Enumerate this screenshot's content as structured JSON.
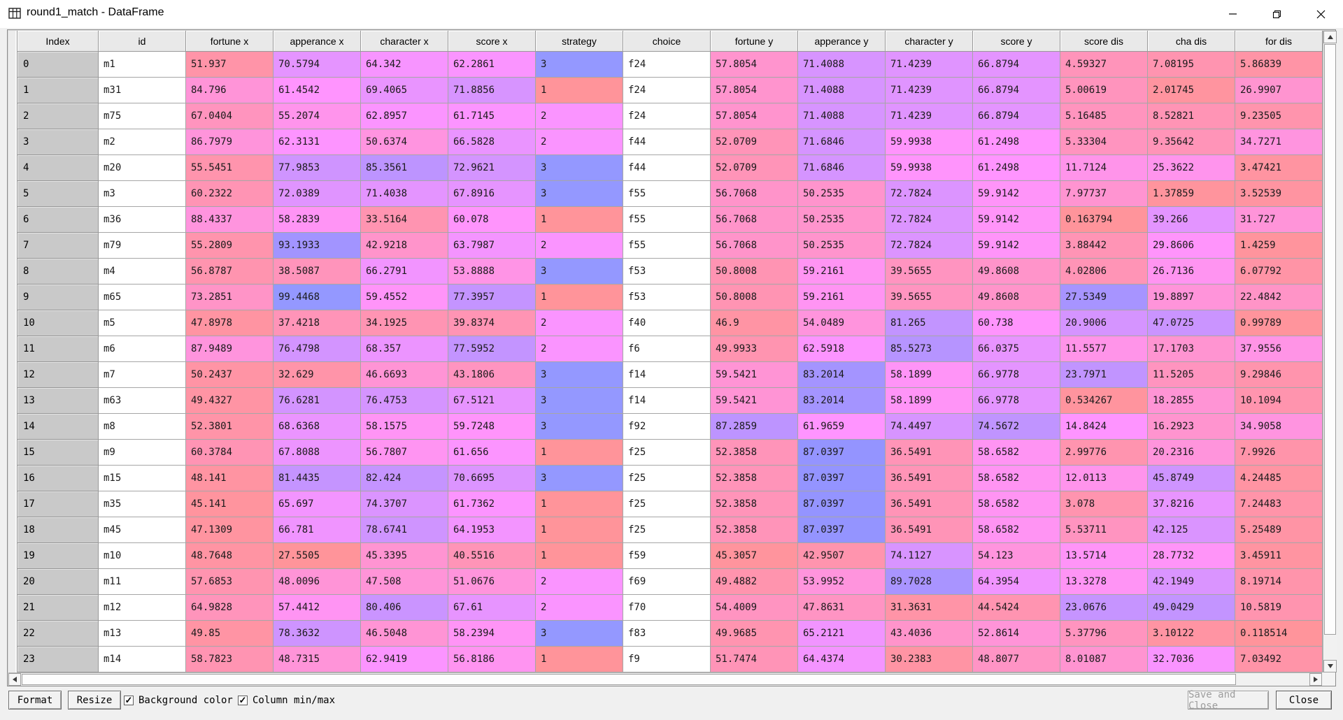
{
  "window": {
    "title": "round1_match - DataFrame"
  },
  "colormap": {
    "min_hue": 0.66,
    "hue_range": 0.33,
    "saturation": 0.7,
    "value": 1.0,
    "alpha": 0.6,
    "text_cell_bg": "#ffffff",
    "index_cell_bg": "#c9c9c9",
    "header_bg": "#e9e9e9"
  },
  "table": {
    "index_header": "Index",
    "index_values": [
      "0",
      "1",
      "2",
      "3",
      "4",
      "5",
      "6",
      "7",
      "8",
      "9",
      "10",
      "11",
      "12",
      "13",
      "14",
      "15",
      "16",
      "17",
      "18",
      "19",
      "20",
      "21",
      "22",
      "23"
    ],
    "columns": [
      {
        "label": "id",
        "type": "text"
      },
      {
        "label": "fortune x",
        "type": "number",
        "cmin": 43,
        "cmax": 186
      },
      {
        "label": "apperance x",
        "type": "number",
        "cmin": 27.5,
        "cmax": 99.5
      },
      {
        "label": "character x",
        "type": "number",
        "cmin": 25.5,
        "cmax": 101.5
      },
      {
        "label": "score x",
        "type": "number",
        "cmin": 32.6,
        "cmax": 92
      },
      {
        "label": "strategy",
        "type": "number",
        "cmin": 1,
        "cmax": 3
      },
      {
        "label": "choice",
        "type": "text"
      },
      {
        "label": "fortune y",
        "type": "number",
        "cmin": 44.5,
        "cmax": 98.8
      },
      {
        "label": "apperance y",
        "type": "number",
        "cmin": 38.4,
        "cmax": 88
      },
      {
        "label": "character y",
        "type": "number",
        "cmin": 27,
        "cmax": 98.3
      },
      {
        "label": "score y",
        "type": "number",
        "cmin": 39.8,
        "cmax": 84.8
      },
      {
        "label": "score dis",
        "type": "number",
        "cmin": 0,
        "cmax": 31
      },
      {
        "label": "cha dis",
        "type": "number",
        "cmin": 0.5,
        "cmax": 64.6
      },
      {
        "label": "for dis",
        "type": "number",
        "cmin": 0,
        "cmax": 107
      }
    ],
    "rows": [
      [
        "m1",
        "51.937",
        "70.5794",
        "64.342",
        "62.2861",
        "3",
        "f24",
        "57.8054",
        "71.4088",
        "71.4239",
        "66.8794",
        "4.59327",
        "7.08195",
        "5.86839"
      ],
      [
        "m31",
        "84.796",
        "61.4542",
        "69.4065",
        "71.8856",
        "1",
        "f24",
        "57.8054",
        "71.4088",
        "71.4239",
        "66.8794",
        "5.00619",
        "2.01745",
        "26.9907"
      ],
      [
        "m75",
        "67.0404",
        "55.2074",
        "62.8957",
        "61.7145",
        "2",
        "f24",
        "57.8054",
        "71.4088",
        "71.4239",
        "66.8794",
        "5.16485",
        "8.52821",
        "9.23505"
      ],
      [
        "m2",
        "86.7979",
        "62.3131",
        "50.6374",
        "66.5828",
        "2",
        "f44",
        "52.0709",
        "71.6846",
        "59.9938",
        "61.2498",
        "5.33304",
        "9.35642",
        "34.7271"
      ],
      [
        "m20",
        "55.5451",
        "77.9853",
        "85.3561",
        "72.9621",
        "3",
        "f44",
        "52.0709",
        "71.6846",
        "59.9938",
        "61.2498",
        "11.7124",
        "25.3622",
        "3.47421"
      ],
      [
        "m3",
        "60.2322",
        "72.0389",
        "71.4038",
        "67.8916",
        "3",
        "f55",
        "56.7068",
        "50.2535",
        "72.7824",
        "59.9142",
        "7.97737",
        "1.37859",
        "3.52539"
      ],
      [
        "m36",
        "88.4337",
        "58.2839",
        "33.5164",
        "60.078",
        "1",
        "f55",
        "56.7068",
        "50.2535",
        "72.7824",
        "59.9142",
        "0.163794",
        "39.266",
        "31.727"
      ],
      [
        "m79",
        "55.2809",
        "93.1933",
        "42.9218",
        "63.7987",
        "2",
        "f55",
        "56.7068",
        "50.2535",
        "72.7824",
        "59.9142",
        "3.88442",
        "29.8606",
        "1.4259"
      ],
      [
        "m4",
        "56.8787",
        "38.5087",
        "66.2791",
        "53.8888",
        "3",
        "f53",
        "50.8008",
        "59.2161",
        "39.5655",
        "49.8608",
        "4.02806",
        "26.7136",
        "6.07792"
      ],
      [
        "m65",
        "73.2851",
        "99.4468",
        "59.4552",
        "77.3957",
        "1",
        "f53",
        "50.8008",
        "59.2161",
        "39.5655",
        "49.8608",
        "27.5349",
        "19.8897",
        "22.4842"
      ],
      [
        "m5",
        "47.8978",
        "37.4218",
        "34.1925",
        "39.8374",
        "2",
        "f40",
        "46.9",
        "54.0489",
        "81.265",
        "60.738",
        "20.9006",
        "47.0725",
        "0.99789"
      ],
      [
        "m6",
        "87.9489",
        "76.4798",
        "68.357",
        "77.5952",
        "2",
        "f6",
        "49.9933",
        "62.5918",
        "85.5273",
        "66.0375",
        "11.5577",
        "17.1703",
        "37.9556"
      ],
      [
        "m7",
        "50.2437",
        "32.629",
        "46.6693",
        "43.1806",
        "3",
        "f14",
        "59.5421",
        "83.2014",
        "58.1899",
        "66.9778",
        "23.7971",
        "11.5205",
        "9.29846"
      ],
      [
        "m63",
        "49.4327",
        "76.6281",
        "76.4753",
        "67.5121",
        "3",
        "f14",
        "59.5421",
        "83.2014",
        "58.1899",
        "66.9778",
        "0.534267",
        "18.2855",
        "10.1094"
      ],
      [
        "m8",
        "52.3801",
        "68.6368",
        "58.1575",
        "59.7248",
        "3",
        "f92",
        "87.2859",
        "61.9659",
        "74.4497",
        "74.5672",
        "14.8424",
        "16.2923",
        "34.9058"
      ],
      [
        "m9",
        "60.3784",
        "67.8088",
        "56.7807",
        "61.656",
        "1",
        "f25",
        "52.3858",
        "87.0397",
        "36.5491",
        "58.6582",
        "2.99776",
        "20.2316",
        "7.9926"
      ],
      [
        "m15",
        "48.141",
        "81.4435",
        "82.424",
        "70.6695",
        "3",
        "f25",
        "52.3858",
        "87.0397",
        "36.5491",
        "58.6582",
        "12.0113",
        "45.8749",
        "4.24485"
      ],
      [
        "m35",
        "45.141",
        "65.697",
        "74.3707",
        "61.7362",
        "1",
        "f25",
        "52.3858",
        "87.0397",
        "36.5491",
        "58.6582",
        "3.078",
        "37.8216",
        "7.24483"
      ],
      [
        "m45",
        "47.1309",
        "66.781",
        "78.6741",
        "64.1953",
        "1",
        "f25",
        "52.3858",
        "87.0397",
        "36.5491",
        "58.6582",
        "5.53711",
        "42.125",
        "5.25489"
      ],
      [
        "m10",
        "48.7648",
        "27.5505",
        "45.3395",
        "40.5516",
        "1",
        "f59",
        "45.3057",
        "42.9507",
        "74.1127",
        "54.123",
        "13.5714",
        "28.7732",
        "3.45911"
      ],
      [
        "m11",
        "57.6853",
        "48.0096",
        "47.508",
        "51.0676",
        "2",
        "f69",
        "49.4882",
        "53.9952",
        "89.7028",
        "64.3954",
        "13.3278",
        "42.1949",
        "8.19714"
      ],
      [
        "m12",
        "64.9828",
        "57.4412",
        "80.406",
        "67.61",
        "2",
        "f70",
        "54.4009",
        "47.8631",
        "31.3631",
        "44.5424",
        "23.0676",
        "49.0429",
        "10.5819"
      ],
      [
        "m13",
        "49.85",
        "78.3632",
        "46.5048",
        "58.2394",
        "3",
        "f83",
        "49.9685",
        "65.2121",
        "43.4036",
        "52.8614",
        "5.37796",
        "3.10122",
        "0.118514"
      ],
      [
        "m14",
        "58.7823",
        "48.7315",
        "62.9419",
        "56.8186",
        "1",
        "f9",
        "51.7474",
        "64.4374",
        "30.2383",
        "48.8077",
        "8.01087",
        "32.7036",
        "7.03492"
      ]
    ]
  },
  "footer": {
    "format_label": "Format",
    "resize_label": "Resize",
    "background_color_label": "Background color",
    "background_color_checked": "✓",
    "column_minmax_label": "Column min/max",
    "column_minmax_checked": "✓",
    "save_close_label": "Save and Close",
    "close_label": "Close"
  }
}
